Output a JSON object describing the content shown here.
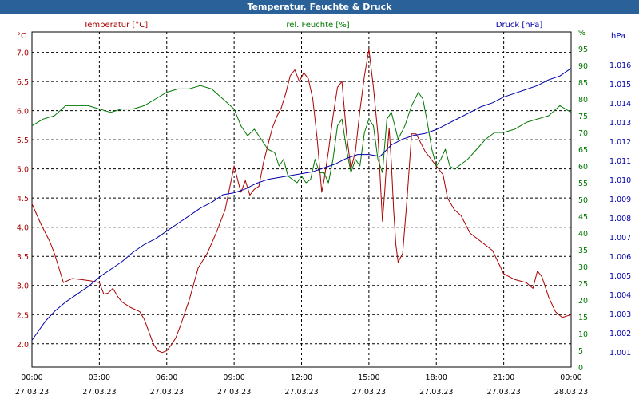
{
  "window": {
    "title": "Temperatur, Feuchte & Druck"
  },
  "colors": {
    "temperature": "#aa0000",
    "humidity": "#007700",
    "pressure": "#0000aa",
    "grid": "#000000",
    "titlebar": "#2a6199"
  },
  "chart_data": {
    "type": "line",
    "title": "Temperatur, Feuchte & Druck",
    "x_range_hours": [
      0,
      24
    ],
    "x_ticks": [
      {
        "h": 0,
        "time": "00:00",
        "date": "27.03.23"
      },
      {
        "h": 3,
        "time": "03:00",
        "date": "27.03.23"
      },
      {
        "h": 6,
        "time": "06:00",
        "date": "27.03.23"
      },
      {
        "h": 9,
        "time": "09:00",
        "date": "27.03.23"
      },
      {
        "h": 12,
        "time": "12:00",
        "date": "27.03.23"
      },
      {
        "h": 15,
        "time": "15:00",
        "date": "27.03.23"
      },
      {
        "h": 18,
        "time": "18:00",
        "date": "27.03.23"
      },
      {
        "h": 21,
        "time": "21:00",
        "date": "27.03.23"
      },
      {
        "h": 24,
        "time": "00:00",
        "date": "28.03.23"
      }
    ],
    "axes": {
      "left": {
        "label": "°C",
        "series_label": "Temperatur [°C]",
        "range": [
          1.6,
          7.35
        ],
        "ticks": [
          "2.0",
          "2.5",
          "3.0",
          "3.5",
          "4.0",
          "4.5",
          "5.0",
          "5.5",
          "6.0",
          "6.5",
          "7.0"
        ]
      },
      "mid": {
        "label": "%",
        "series_label": "rel. Feuchte [%]",
        "range": [
          0,
          100
        ],
        "ticks": [
          "0",
          "5",
          "10",
          "15",
          "20",
          "25",
          "30",
          "35",
          "40",
          "45",
          "50",
          "55",
          "60",
          "65",
          "70",
          "75",
          "80",
          "85",
          "90",
          "95",
          "%"
        ]
      },
      "right": {
        "label": "hPa",
        "series_label": "Druck [hPa]",
        "range": [
          1.0002,
          1.0177
        ],
        "ticks": [
          "1.001",
          "1.002",
          "1.003",
          "1.004",
          "1.005",
          "1.006",
          "1.007",
          "1.008",
          "1.009",
          "1.010",
          "1.011",
          "1.012",
          "1.013",
          "1.014",
          "1.015",
          "1.016"
        ]
      }
    },
    "series": [
      {
        "name": "Temperatur [°C]",
        "axis": "left",
        "color": "#aa0000",
        "x": [
          0,
          0.4,
          0.8,
          1.0,
          1.4,
          1.8,
          2.2,
          2.6,
          3.0,
          3.2,
          3.4,
          3.6,
          3.8,
          4.0,
          4.4,
          4.8,
          5.0,
          5.4,
          5.6,
          5.8,
          6.0,
          6.2,
          6.4,
          6.6,
          7.0,
          7.4,
          7.8,
          8.2,
          8.6,
          9.0,
          9.3,
          9.5,
          9.7,
          9.9,
          10.1,
          10.3,
          10.5,
          10.7,
          10.9,
          11.1,
          11.3,
          11.5,
          11.7,
          11.9,
          12.1,
          12.3,
          12.5,
          12.7,
          12.9,
          13.0,
          13.2,
          13.4,
          13.6,
          13.8,
          14.0,
          14.2,
          14.4,
          14.6,
          14.8,
          15.0,
          15.2,
          15.4,
          15.6,
          15.7,
          15.8,
          15.9,
          16.0,
          16.1,
          16.2,
          16.3,
          16.5,
          16.7,
          16.9,
          17.1,
          17.3,
          17.5,
          17.7,
          17.9,
          18.1,
          18.3,
          18.5,
          18.8,
          19.1,
          19.5,
          20.0,
          20.5,
          21.0,
          21.5,
          22.0,
          22.3,
          22.5,
          22.7,
          23.0,
          23.3,
          23.6,
          24.0
        ],
        "values": [
          4.4,
          4.05,
          3.75,
          3.55,
          3.05,
          3.12,
          3.1,
          3.08,
          3.05,
          2.85,
          2.87,
          2.95,
          2.82,
          2.72,
          2.62,
          2.55,
          2.42,
          2.0,
          1.88,
          1.85,
          1.88,
          1.98,
          2.1,
          2.3,
          2.75,
          3.3,
          3.55,
          3.9,
          4.3,
          5.05,
          4.6,
          4.8,
          4.55,
          4.65,
          4.7,
          5.1,
          5.4,
          5.7,
          5.9,
          6.05,
          6.3,
          6.6,
          6.7,
          6.5,
          6.65,
          6.55,
          6.2,
          5.5,
          4.6,
          4.8,
          5.3,
          5.9,
          6.4,
          6.5,
          5.6,
          5.0,
          5.3,
          6.0,
          6.6,
          7.05,
          6.4,
          5.6,
          4.1,
          4.6,
          5.2,
          5.7,
          5.1,
          4.3,
          3.7,
          3.4,
          3.55,
          4.5,
          5.6,
          5.6,
          5.45,
          5.3,
          5.2,
          5.1,
          5.0,
          4.9,
          4.5,
          4.3,
          4.2,
          3.9,
          3.75,
          3.6,
          3.2,
          3.1,
          3.05,
          2.95,
          3.25,
          3.15,
          2.8,
          2.55,
          2.45,
          2.5
        ]
      },
      {
        "name": "rel. Feuchte [%]",
        "axis": "mid",
        "color": "#007700",
        "x": [
          0,
          0.5,
          1.0,
          1.5,
          2.0,
          2.5,
          3.0,
          3.5,
          4.0,
          4.5,
          5.0,
          5.5,
          6.0,
          6.5,
          7.0,
          7.5,
          8.0,
          8.5,
          9.0,
          9.3,
          9.6,
          9.9,
          10.2,
          10.5,
          10.8,
          11.0,
          11.2,
          11.4,
          11.6,
          11.8,
          12.0,
          12.2,
          12.4,
          12.6,
          12.8,
          13.0,
          13.2,
          13.4,
          13.6,
          13.8,
          14.0,
          14.2,
          14.4,
          14.6,
          14.8,
          15.0,
          15.2,
          15.4,
          15.6,
          15.8,
          16.0,
          16.3,
          16.6,
          16.9,
          17.2,
          17.4,
          17.6,
          17.8,
          18.0,
          18.2,
          18.4,
          18.6,
          18.8,
          19.0,
          19.4,
          19.8,
          20.2,
          20.6,
          21.0,
          21.5,
          22.0,
          22.5,
          23.0,
          23.5,
          24.0
        ],
        "values": [
          72,
          74,
          75,
          78,
          78,
          78,
          77,
          76,
          77,
          77,
          78,
          80,
          82,
          83,
          83,
          84,
          83,
          80,
          77,
          72,
          69,
          71,
          68,
          65,
          64,
          60,
          62,
          57,
          56,
          55,
          57,
          55,
          56,
          62,
          58,
          58,
          55,
          62,
          72,
          74,
          65,
          58,
          62,
          60,
          70,
          74,
          72,
          62,
          58,
          74,
          76,
          68,
          72,
          78,
          82,
          80,
          73,
          65,
          60,
          62,
          65,
          60,
          59,
          60,
          62,
          65,
          68,
          70,
          70,
          71,
          73,
          74,
          75,
          78,
          76
        ]
      },
      {
        "name": "Druck [hPa]",
        "axis": "right",
        "color": "#0000aa",
        "x": [
          0,
          0.3,
          0.6,
          1.0,
          1.5,
          2.0,
          2.5,
          3.0,
          3.5,
          4.0,
          4.5,
          5.0,
          5.5,
          6.0,
          6.5,
          7.0,
          7.5,
          8.0,
          8.5,
          9.0,
          9.5,
          10.0,
          10.5,
          11.0,
          11.5,
          12.0,
          12.5,
          13.0,
          13.5,
          14.0,
          14.5,
          15.0,
          15.5,
          16.0,
          16.5,
          17.0,
          17.5,
          18.0,
          18.5,
          19.0,
          19.5,
          20.0,
          20.5,
          21.0,
          21.5,
          22.0,
          22.5,
          23.0,
          23.5,
          24.0
        ],
        "values": [
          1.0016,
          1.0021,
          1.0026,
          1.0031,
          1.0036,
          1.004,
          1.0044,
          1.0049,
          1.0053,
          1.0057,
          1.0062,
          1.0066,
          1.0069,
          1.0073,
          1.0077,
          1.0081,
          1.0085,
          1.0088,
          1.0092,
          1.0093,
          1.0095,
          1.0098,
          1.01,
          1.0101,
          1.0102,
          1.0103,
          1.0104,
          1.0106,
          1.0108,
          1.0111,
          1.0113,
          1.0113,
          1.0112,
          1.0118,
          1.0121,
          1.0123,
          1.0124,
          1.0126,
          1.0129,
          1.0132,
          1.0135,
          1.0138,
          1.014,
          1.0143,
          1.0145,
          1.0147,
          1.0149,
          1.0152,
          1.0154,
          1.0158
        ]
      }
    ]
  }
}
